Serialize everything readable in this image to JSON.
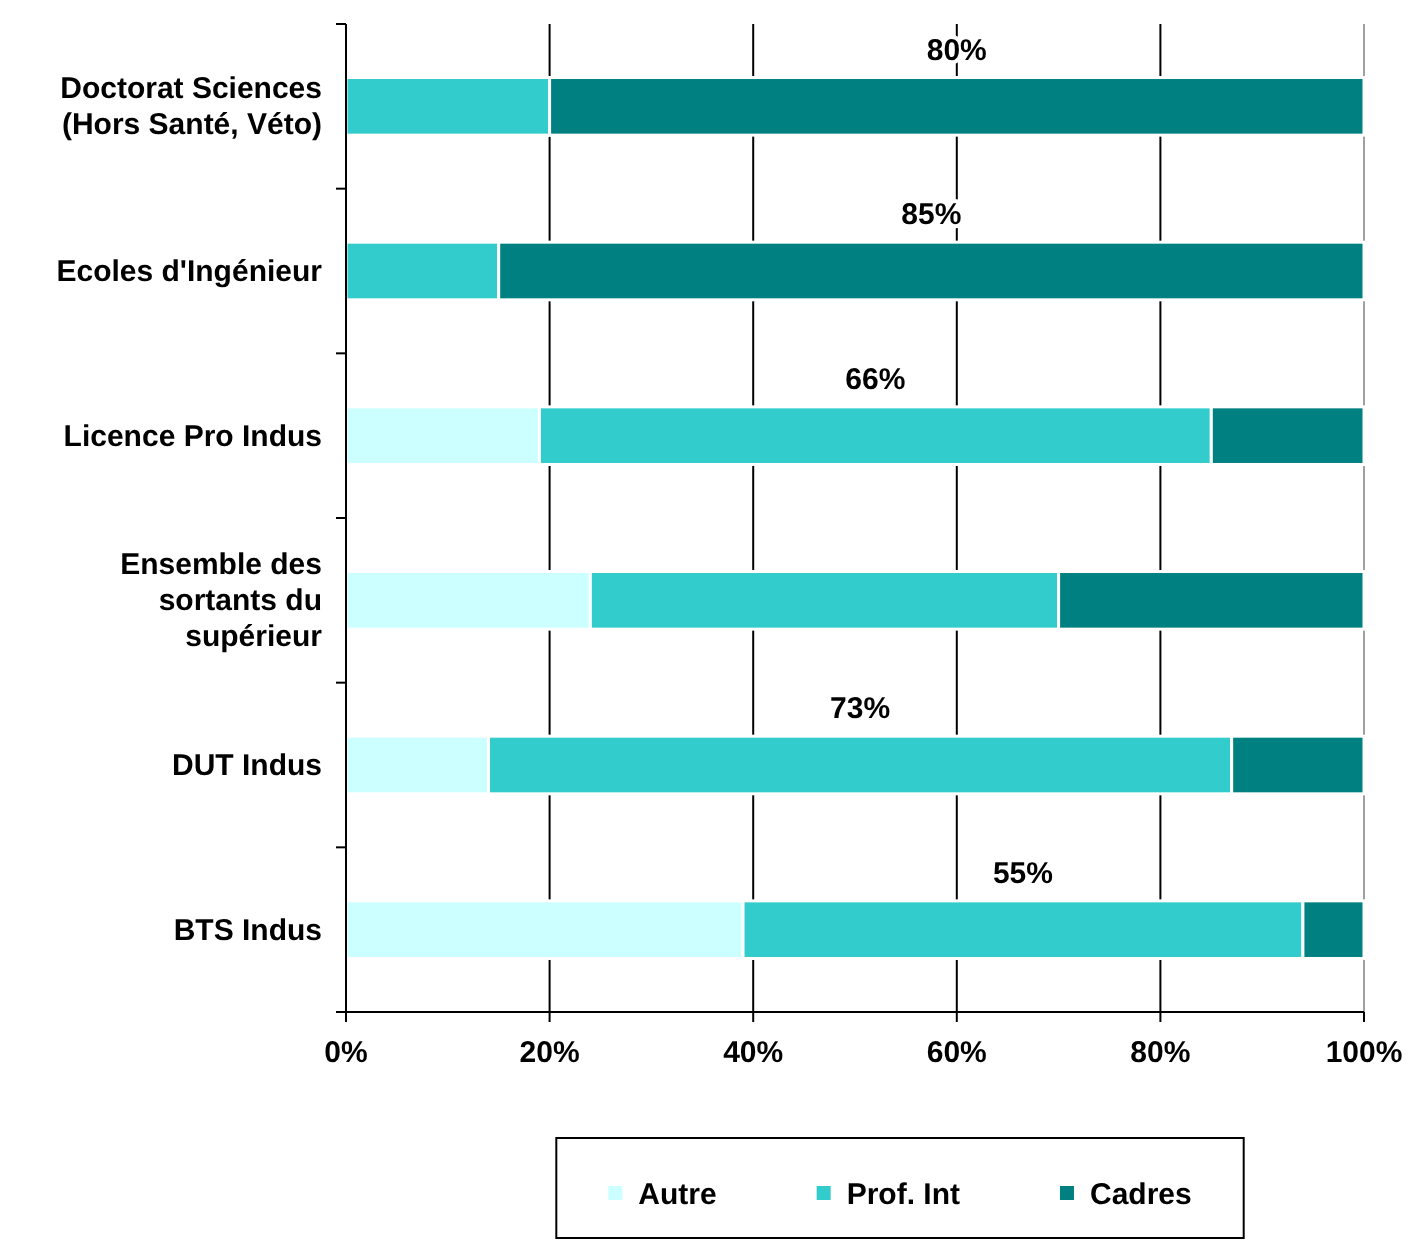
{
  "chart_data": {
    "type": "bar",
    "orientation": "horizontal",
    "stacked": true,
    "categories": [
      "Doctorat Sciences (Hors Santé, Véto)",
      "Ecoles d'Ingénieur",
      "Licence Pro Indus",
      "Ensemble des sortants du supérieur",
      "DUT Indus",
      "BTS Indus"
    ],
    "series": [
      {
        "name": "Autre",
        "color": "#ccffff",
        "values": [
          0,
          0,
          19,
          24,
          14,
          39
        ]
      },
      {
        "name": "Prof. Int",
        "color": "#33cccc",
        "values": [
          20,
          15,
          66,
          46,
          73,
          55
        ],
        "value_labels": [
          null,
          null,
          "66%",
          null,
          "73%",
          "55%"
        ]
      },
      {
        "name": "Cadres",
        "color": "#008080",
        "values": [
          80,
          85,
          15,
          30,
          13,
          6
        ],
        "value_labels": [
          "80%",
          "85%",
          null,
          null,
          null,
          null
        ]
      }
    ],
    "xlim": [
      0,
      100
    ],
    "xticks": [
      {
        "value": 0,
        "label": "0%"
      },
      {
        "value": 20,
        "label": "20%"
      },
      {
        "value": 40,
        "label": "40%"
      },
      {
        "value": 60,
        "label": "60%"
      },
      {
        "value": 80,
        "label": "80%"
      },
      {
        "value": 100,
        "label": "100%"
      }
    ],
    "grid": "x",
    "legend": "bottom"
  }
}
